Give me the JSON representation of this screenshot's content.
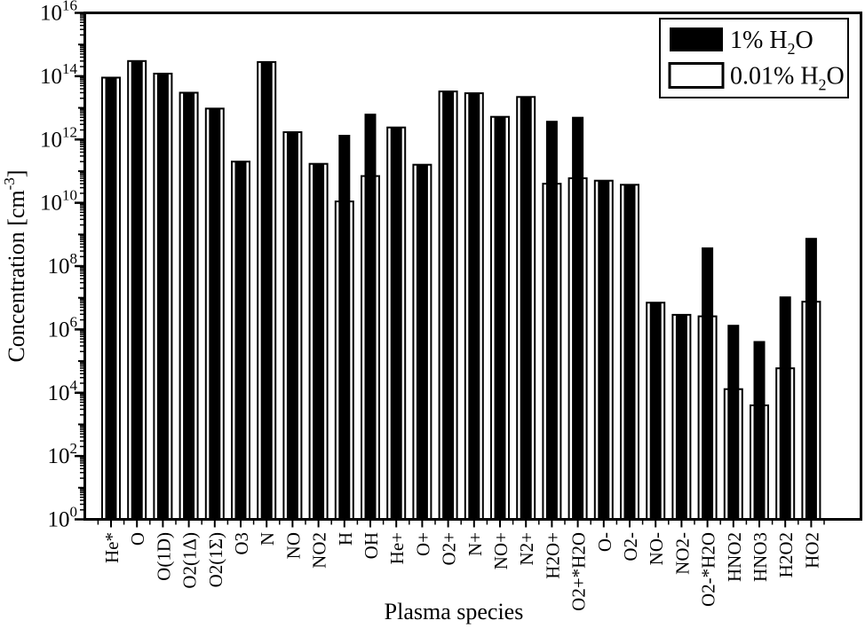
{
  "figure": {
    "background_color": "#ffffff",
    "foreground_color": "#000000"
  },
  "chart_data": {
    "type": "bar",
    "title": "",
    "xlabel": "Plasma species",
    "ylabel": {
      "pre": "Concentration [cm",
      "sup": "-3",
      "post": "]"
    },
    "y_scale": "log",
    "ylim": [
      1,
      1e+16
    ],
    "grid": false,
    "y_axis": {
      "base": "10",
      "labeled_exponents": [
        0,
        2,
        4,
        6,
        8,
        10,
        12,
        14,
        16
      ]
    },
    "legend": {
      "position": "top-right",
      "items": [
        {
          "label": "1% H2O",
          "pre": "1% H",
          "sub": "2",
          "post": "O",
          "swatch": "filled-black"
        },
        {
          "label": "0.01% H2O",
          "pre": "0.01% H",
          "sub": "2",
          "post": "O",
          "swatch": "open-white"
        }
      ]
    },
    "categories": [
      "He*",
      "O",
      "O(1D)",
      "O2(1Δ)",
      "O2(1Σ)",
      "O3",
      "N",
      "NO",
      "NO2",
      "H",
      "OH",
      "He+",
      "O+",
      "O2+",
      "N+",
      "NO+",
      "N2+",
      "H2O+",
      "O2+*H2O",
      "O-",
      "O2-",
      "NO-",
      "NO2-",
      "O2-*H2O",
      "HNO2",
      "HNO3",
      "H2O2",
      "HO2"
    ],
    "series": [
      {
        "name": "1% H2O",
        "style": "filled-black",
        "values": [
          90000000000000.0,
          300000000000000.0,
          120000000000000.0,
          30000000000000.0,
          9500000000000.0,
          200000000000.0,
          280000000000000.0,
          1700000000000.0,
          170000000000.0,
          1400000000000.0,
          6500000000000.0,
          2400000000000.0,
          160000000000.0,
          33000000000000.0,
          29000000000000.0,
          5200000000000.0,
          22000000000000.0,
          3900000000000.0,
          5200000000000.0,
          50000000000.0,
          37000000000.0,
          7000000.0,
          2900000.0,
          390000000.0,
          1400000.0,
          430000.0,
          11000000.0,
          780000000.0
        ]
      },
      {
        "name": "0.01% H2O",
        "style": "open-white",
        "values": [
          90000000000000.0,
          300000000000000.0,
          120000000000000.0,
          30000000000000.0,
          9500000000000.0,
          200000000000.0,
          280000000000000.0,
          1700000000000.0,
          170000000000.0,
          11000000000.0,
          70000000000.0,
          2400000000000.0,
          160000000000.0,
          33000000000000.0,
          29000000000000.0,
          5200000000000.0,
          22000000000000.0,
          40000000000.0,
          60000000000.0,
          50000000000.0,
          37000000000.0,
          7000000.0,
          2900000.0,
          2600000.0,
          13000.0,
          4000.0,
          59000.0,
          7500000.0
        ]
      }
    ]
  }
}
